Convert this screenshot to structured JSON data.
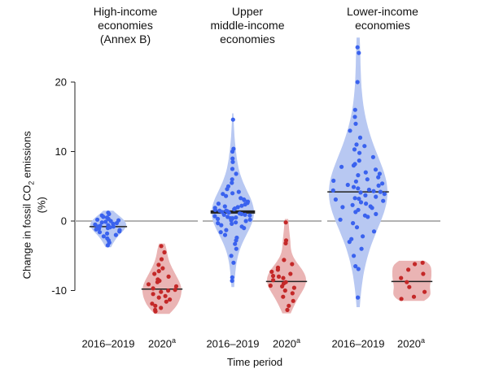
{
  "chart_data": {
    "type": "violin",
    "ylabel": "Change in fossil CO2 emissions (%)",
    "ylabel_parts": {
      "pre": "Change in fossil CO",
      "sub": "2",
      "post": " emissions (%)"
    },
    "xlabel": "Time period",
    "yticks": [
      20,
      10,
      0,
      -10
    ],
    "ylim": [
      -12,
      25
    ],
    "colors": {
      "period_1_fill": "#b8c8f2",
      "period_1_point": "#3a62ee",
      "period_2_fill": "#eab4b4",
      "period_2_point": "#c42828",
      "zero_line": "#b3b3b3",
      "median_line": "#222222"
    },
    "groups": [
      {
        "title_lines": [
          "High-income",
          "economies",
          "(Annex B)"
        ],
        "periods": [
          {
            "label": "2016–2019",
            "sup": "",
            "median": -0.8,
            "values": [
              1.2,
              1.0,
              0.8,
              0.6,
              0.5,
              0.3,
              0.2,
              0.1,
              0.0,
              -0.1,
              -0.2,
              -0.3,
              -0.4,
              -0.5,
              -0.6,
              -0.7,
              -0.8,
              -0.8,
              -0.9,
              -1.0,
              -1.1,
              -1.2,
              -1.3,
              -1.5,
              -1.6,
              -1.8,
              -2.0,
              -2.2,
              -2.5,
              -2.8,
              -3.1,
              -3.5
            ]
          },
          {
            "label": "2020",
            "sup": "a",
            "median": -9.8,
            "values": [
              -3.6,
              -4.5,
              -5.5,
              -6.3,
              -6.8,
              -7.2,
              -7.6,
              -8.0,
              -8.4,
              -8.8,
              -9.1,
              -9.4,
              -9.7,
              -9.9,
              -10.2,
              -10.5,
              -10.8,
              -11.0,
              -11.3,
              -11.6,
              -11.9,
              -12.2,
              -12.5,
              -12.8,
              -13.0,
              -8.6,
              -10.0
            ]
          }
        ]
      },
      {
        "title_lines": [
          "Upper",
          "middle-income",
          "economies"
        ],
        "periods": [
          {
            "label": "2016–2019",
            "sup": "",
            "median": 1.3,
            "values": [
              14.6,
              10.4,
              10.0,
              9.0,
              8.5,
              7.5,
              6.8,
              6.0,
              5.5,
              5.0,
              4.6,
              4.2,
              3.9,
              3.6,
              3.3,
              3.0,
              2.8,
              2.6,
              2.4,
              2.2,
              2.0,
              1.8,
              1.6,
              1.5,
              1.4,
              1.3,
              1.2,
              1.1,
              1.0,
              0.9,
              0.8,
              0.7,
              0.6,
              0.5,
              0.4,
              0.3,
              0.2,
              0.1,
              0.0,
              -0.2,
              -0.4,
              -0.6,
              -0.8,
              -1.0,
              -1.3,
              -1.6,
              -2.0,
              -2.4,
              -2.8,
              -3.3,
              -4.0,
              -5.0,
              -6.0,
              -8.1,
              -8.6,
              2.5,
              1.9,
              1.7,
              0.9,
              3.1,
              1.5,
              0.4,
              -0.3,
              2.1,
              4.0
            ]
          },
          {
            "label": "2020",
            "sup": "a",
            "median": -8.7,
            "values": [
              -0.2,
              -2.8,
              -3.2,
              -5.6,
              -6.2,
              -6.7,
              -7.0,
              -7.3,
              -7.6,
              -7.9,
              -8.2,
              -8.5,
              -8.8,
              -9.0,
              -9.3,
              -9.6,
              -10.0,
              -10.4,
              -10.9,
              -11.5,
              -12.2,
              -12.8,
              -8.0,
              -9.4
            ]
          }
        ]
      },
      {
        "title_lines": [
          "Lower-income",
          "economies"
        ],
        "periods": [
          {
            "label": "2016–2019",
            "sup": "",
            "median": 4.2,
            "values": [
              25.0,
              24.2,
              20.0,
              16.0,
              15.0,
              14.0,
              13.0,
              12.0,
              11.0,
              10.3,
              9.8,
              9.2,
              8.7,
              8.2,
              7.8,
              7.4,
              7.0,
              6.6,
              6.3,
              6.0,
              5.7,
              5.4,
              5.1,
              4.9,
              4.7,
              4.5,
              4.3,
              4.2,
              4.1,
              3.9,
              3.7,
              3.5,
              3.3,
              3.1,
              2.9,
              2.7,
              2.5,
              2.3,
              2.1,
              1.9,
              1.6,
              1.3,
              1.0,
              0.6,
              0.2,
              -0.3,
              -0.9,
              -1.5,
              -2.2,
              -3.0,
              -4.0,
              -5.0,
              -6.5,
              -6.9,
              -11.0,
              5.8,
              6.8,
              3.2,
              4.4,
              8.0,
              2.0,
              0.8,
              -2.6,
              10.8,
              5.2
            ]
          },
          {
            "label": "2020",
            "sup": "a",
            "median": -8.7,
            "values": [
              -6.0,
              -6.2,
              -7.0,
              -7.6,
              -8.2,
              -8.8,
              -9.5,
              -10.2,
              -10.9,
              -11.2
            ]
          }
        ]
      }
    ]
  }
}
